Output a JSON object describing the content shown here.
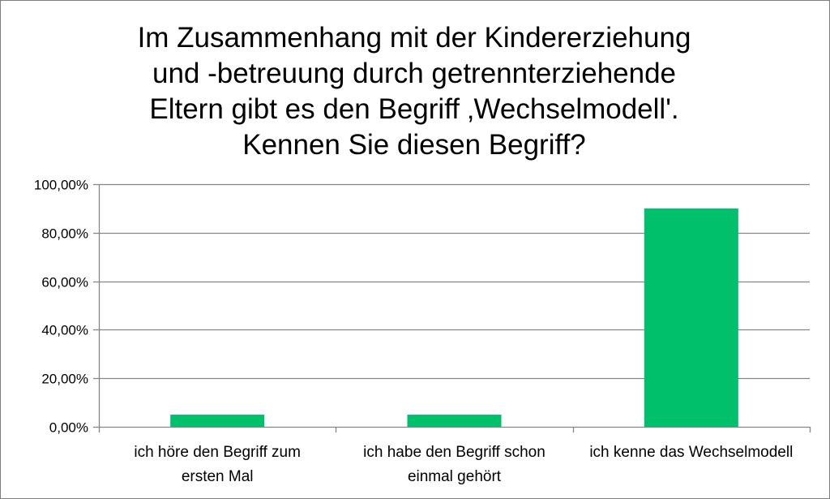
{
  "chart_data": {
    "type": "bar",
    "title_lines": [
      "Im Zusammenhang mit der Kindererziehung",
      "und -betreuung durch getrennterziehende",
      "Eltern gibt es den Begriff ‚Wechselmodell'.",
      "Kennen Sie diesen Begriff?"
    ],
    "categories": [
      [
        "ich höre den Begriff zum",
        "ersten Mal"
      ],
      [
        "ich habe den Begriff schon",
        "einmal gehört"
      ],
      [
        "ich kenne das Wechselmodell"
      ]
    ],
    "values": [
      0.05,
      0.05,
      0.9
    ],
    "y_ticks": [
      {
        "value": 0,
        "label": "0,00%"
      },
      {
        "value": 0.2,
        "label": "20,00%"
      },
      {
        "value": 0.4,
        "label": "40,00%"
      },
      {
        "value": 0.6,
        "label": "60,00%"
      },
      {
        "value": 0.8,
        "label": "80,00%"
      },
      {
        "value": 1.0,
        "label": "100,00%"
      }
    ],
    "ylim": [
      0,
      1
    ],
    "grid": true,
    "legend": "none",
    "bar_color": "#00c06b",
    "grid_color": "#868686",
    "axis_color": "#868686"
  }
}
